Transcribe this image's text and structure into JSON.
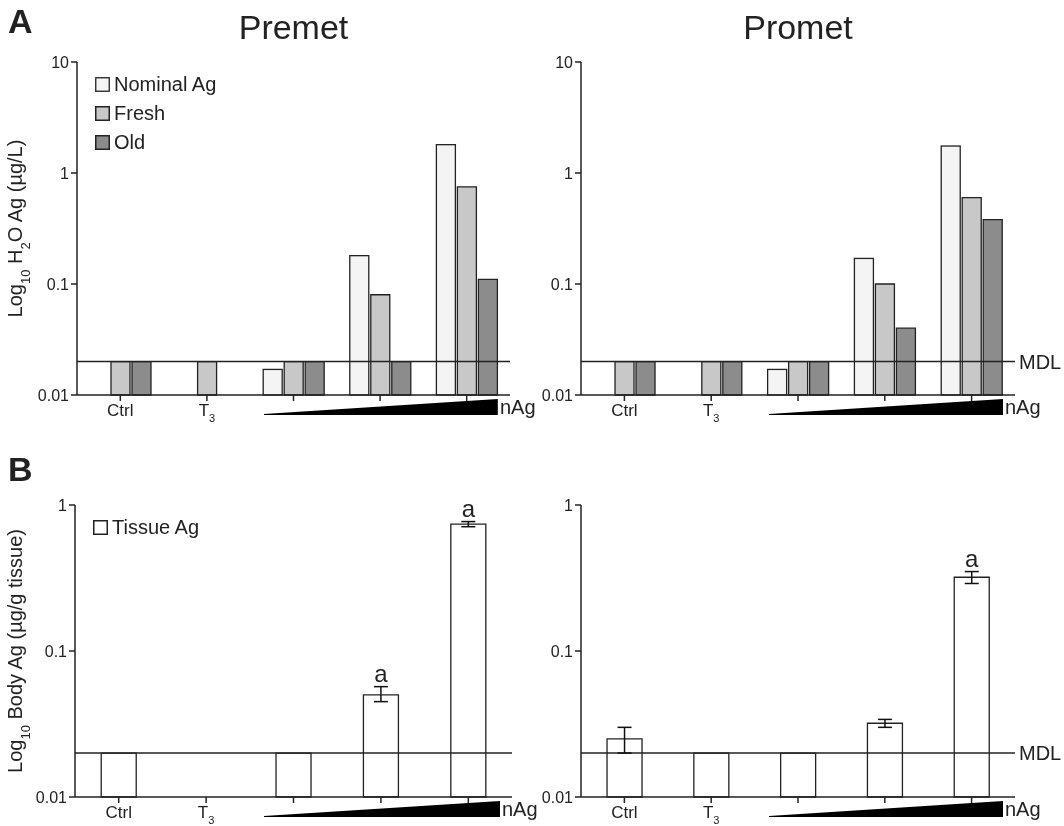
{
  "chart_data": [
    {
      "type": "bar",
      "title": "Premet",
      "ylabel": "Log$_{10}$ H$_{2}$O Ag  (µg/L)",
      "categories": [
        "Ctrl",
        "T$_{3}$",
        null,
        null,
        null
      ],
      "log": true,
      "ylim": [
        0.01,
        10
      ],
      "yticks": [
        0.01,
        0.1,
        1,
        10
      ],
      "legend": "top left",
      "series": [
        {
          "name": "Nominal Ag",
          "color": "#f4f4f4",
          "values": [
            null,
            null,
            0.017,
            0.18,
            1.8
          ]
        },
        {
          "name": "Fresh",
          "color": "#c8c8c8",
          "values": [
            0.02,
            0.02,
            0.02,
            0.08,
            0.75
          ]
        },
        {
          "name": "Old",
          "color": "#8c8c8c",
          "values": [
            0.02,
            null,
            0.02,
            0.02,
            0.11
          ]
        }
      ],
      "ref_lines": [
        {
          "axis": "y",
          "value": 0.02,
          "label": null
        }
      ],
      "annotations": [
        "A",
        "nAg"
      ]
    },
    {
      "type": "bar",
      "title": "Promet",
      "categories": [
        "Ctrl",
        "T$_{3}$",
        null,
        null,
        null
      ],
      "log": true,
      "ylim": [
        0.01,
        10
      ],
      "yticks": [
        0.01,
        0.1,
        1,
        10
      ],
      "series": [
        {
          "color": "#f4f4f4",
          "values": [
            null,
            null,
            0.017,
            0.17,
            1.75
          ]
        },
        {
          "color": "#c8c8c8",
          "values": [
            0.02,
            0.02,
            0.02,
            0.1,
            0.6
          ]
        },
        {
          "color": "#8c8c8c",
          "values": [
            0.02,
            0.02,
            0.02,
            0.04,
            0.38
          ]
        }
      ],
      "ref_lines": [
        {
          "axis": "y",
          "value": 0.02,
          "label": "MDL"
        }
      ],
      "annotations": [
        "nAg"
      ]
    },
    {
      "type": "bar",
      "ylabel": "Log$_{10}$ Body Ag (µg/g tissue)",
      "categories": [
        "Ctrl",
        "T$_{3}$",
        null,
        null,
        null
      ],
      "log": true,
      "ylim": [
        0.01,
        1
      ],
      "yticks": [
        0.01,
        0.1,
        1
      ],
      "legend": "top left",
      "series": [
        {
          "name": "Tissue Ag",
          "color": "#ffffff",
          "values": [
            0.02,
            null,
            0.02,
            0.05,
            0.74
          ],
          "errors": [
            null,
            null,
            null,
            [
              0.045,
              0.057
            ],
            [
              0.71,
              0.77
            ]
          ],
          "value_labels": [
            null,
            null,
            null,
            "a",
            "a"
          ]
        }
      ],
      "ref_lines": [
        {
          "axis": "y",
          "value": 0.02,
          "label": null
        }
      ],
      "annotations": [
        "B",
        "nAg"
      ]
    },
    {
      "type": "bar",
      "categories": [
        "Ctrl",
        "T$_{3}$",
        null,
        null,
        null
      ],
      "log": true,
      "ylim": [
        0.01,
        1
      ],
      "yticks": [
        0.01,
        0.1,
        1
      ],
      "series": [
        {
          "color": "#ffffff",
          "values": [
            0.025,
            0.02,
            0.02,
            0.032,
            0.32
          ],
          "errors": [
            [
              0.02,
              0.03
            ],
            null,
            null,
            [
              0.03,
              0.034
            ],
            [
              0.29,
              0.35
            ]
          ],
          "value_labels": [
            null,
            null,
            null,
            null,
            "a"
          ]
        }
      ],
      "ref_lines": [
        {
          "axis": "y",
          "value": 0.02,
          "label": "MDL"
        }
      ],
      "annotations": [
        "nAg"
      ]
    }
  ]
}
